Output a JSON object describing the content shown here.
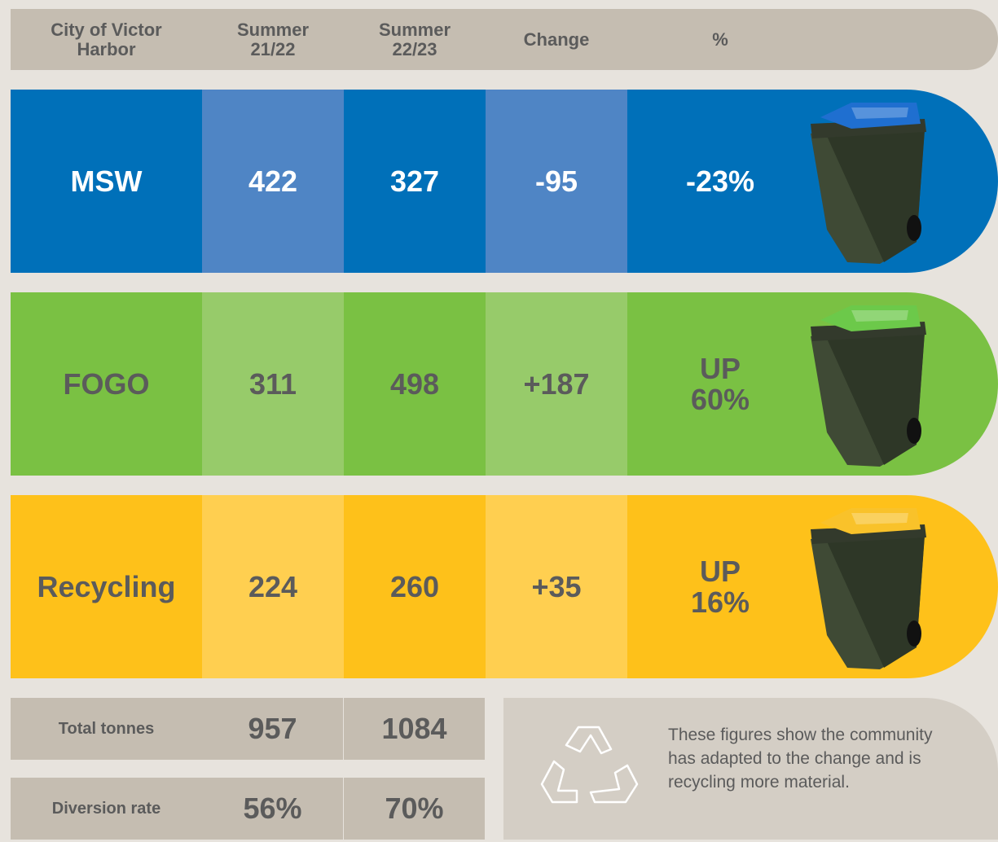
{
  "header": [
    "City of Victor Harbor",
    "Summer 21/22",
    "Summer 22/23",
    "Change",
    "%"
  ],
  "rows": [
    {
      "name": "MSW",
      "values": [
        "422",
        "327",
        "-95",
        "-23%"
      ]
    },
    {
      "name": "FOGO",
      "values": [
        "311",
        "498",
        "+187",
        "UP 60%"
      ]
    },
    {
      "name": "Recycling",
      "values": [
        "224",
        "260",
        "+35",
        "UP 16%"
      ]
    }
  ],
  "totals": [
    {
      "label": "Total tonnes",
      "values": [
        "957",
        "1084"
      ]
    },
    {
      "label": "Diversion rate",
      "values": [
        "56%",
        "70%"
      ]
    }
  ],
  "note": "These figures show the community has adapted to the change and is recycling more material."
}
